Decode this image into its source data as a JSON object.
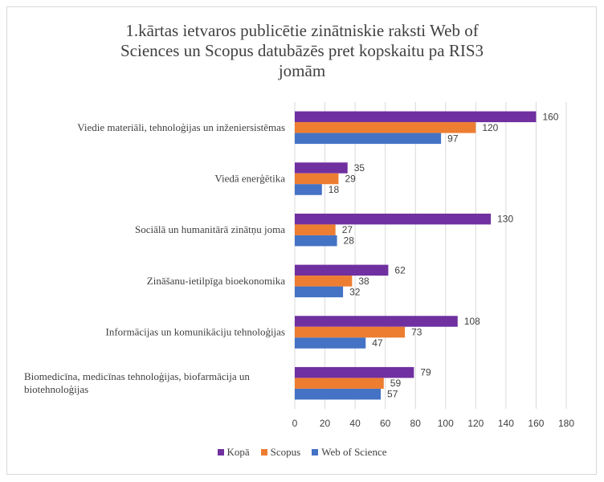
{
  "chart_data": {
    "type": "bar",
    "orientation": "horizontal",
    "title": "1.kārtas ietvaros publicētie zinātniskie raksti Web of\nSciences un Scopus datubāzēs pret kopskaitu pa RIS3\njomām",
    "categories": [
      "Viedie materiāli, tehnoloģijas un inženiersistēmas",
      "Viedā enerģētika",
      "Sociālā un humanitārā zinātņu joma",
      "Zināšanu-ietilpīga bioekonomika",
      "Informācijas un komunikāciju tehnoloģijas",
      "Biomedicīna, medicīnas tehnoloģijas, biofarmācija un biotehnoloģijas"
    ],
    "category_lines": [
      [
        "Viedie materiāli, tehnoloģijas un inženiersistēmas"
      ],
      [
        "Viedā enerģētika"
      ],
      [
        "Sociālā un humanitārā zinātņu joma"
      ],
      [
        "Zināšanu-ietilpīga bioekonomika"
      ],
      [
        "Informācijas un komunikāciju tehnoloģijas"
      ],
      [
        "Biomedicīna, medicīnas tehnoloģijas, biofarmācija un",
        "biotehnoloģijas"
      ]
    ],
    "series": [
      {
        "name": "Kopā",
        "color": "#7030a0",
        "values": [
          160,
          35,
          130,
          62,
          108,
          79
        ]
      },
      {
        "name": "Scopus",
        "color": "#ed7d31",
        "values": [
          120,
          29,
          27,
          38,
          73,
          59
        ]
      },
      {
        "name": "Web of Science",
        "color": "#4472c4",
        "values": [
          97,
          18,
          28,
          32,
          47,
          57
        ]
      }
    ],
    "xlim": [
      0,
      180
    ],
    "xticks": [
      0,
      20,
      40,
      60,
      80,
      100,
      120,
      140,
      160,
      180
    ],
    "grid": true,
    "legend_position": "bottom",
    "data_labels": true
  }
}
